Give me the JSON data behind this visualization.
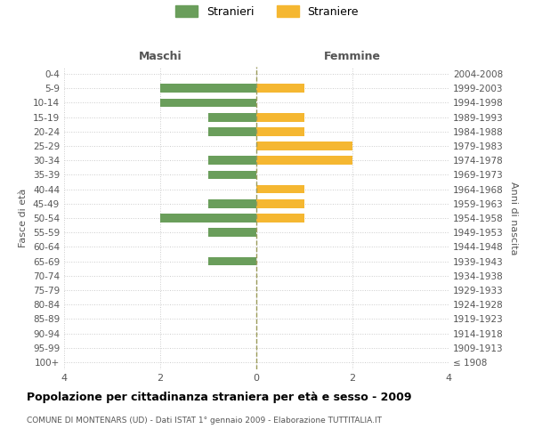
{
  "age_groups": [
    "100+",
    "95-99",
    "90-94",
    "85-89",
    "80-84",
    "75-79",
    "70-74",
    "65-69",
    "60-64",
    "55-59",
    "50-54",
    "45-49",
    "40-44",
    "35-39",
    "30-34",
    "25-29",
    "20-24",
    "15-19",
    "10-14",
    "5-9",
    "0-4"
  ],
  "birth_years": [
    "≤ 1908",
    "1909-1913",
    "1914-1918",
    "1919-1923",
    "1924-1928",
    "1929-1933",
    "1934-1938",
    "1939-1943",
    "1944-1948",
    "1949-1953",
    "1954-1958",
    "1959-1963",
    "1964-1968",
    "1969-1973",
    "1974-1978",
    "1979-1983",
    "1984-1988",
    "1989-1993",
    "1994-1998",
    "1999-2003",
    "2004-2008"
  ],
  "males": [
    0,
    0,
    0,
    0,
    0,
    0,
    0,
    1,
    0,
    1,
    2,
    1,
    0,
    1,
    1,
    0,
    1,
    1,
    2,
    2,
    0
  ],
  "females": [
    0,
    0,
    0,
    0,
    0,
    0,
    0,
    0,
    0,
    0,
    1,
    1,
    1,
    0,
    2,
    2,
    1,
    1,
    0,
    1,
    0
  ],
  "male_color": "#6a9e5b",
  "female_color": "#f5b731",
  "title": "Popolazione per cittadinanza straniera per età e sesso - 2009",
  "subtitle": "COMUNE DI MONTENARS (UD) - Dati ISTAT 1° gennaio 2009 - Elaborazione TUTTITALIA.IT",
  "ylabel_left": "Fasce di età",
  "ylabel_right": "Anni di nascita",
  "xlabel_left": "Maschi",
  "xlabel_right": "Femmine",
  "legend_male": "Stranieri",
  "legend_female": "Straniere",
  "xlim": 4,
  "background_color": "#ffffff",
  "grid_color": "#cccccc",
  "axis_line_color": "#9b9b5a"
}
